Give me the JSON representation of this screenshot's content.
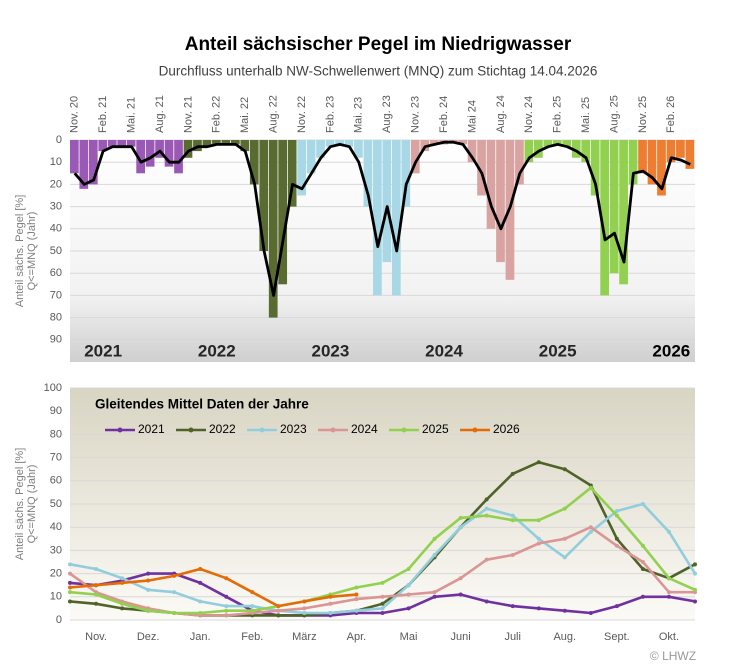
{
  "footer": "© LHWZ",
  "chart_data": [
    {
      "type": "bar",
      "title": "Anteil sächsischer Pegel im Niedrigwasser",
      "subtitle": "Durchfluss unterhalb NW-Schwellenwert (MNQ) zum Stichtag 14.04.2026",
      "ylabel": [
        "Anteil sächs. Pegel [%]",
        "Q<=MNQ (Jahr)"
      ],
      "y_inverted": true,
      "ylim": [
        0,
        100
      ],
      "yticks": [
        0,
        10,
        20,
        30,
        40,
        50,
        60,
        70,
        80,
        90
      ],
      "grid": true,
      "categories": [
        "Nov. 20",
        null,
        null,
        "Feb. 21",
        null,
        null,
        "Mai. 21",
        null,
        null,
        "Aug. 21",
        null,
        null,
        "Nov. 21",
        null,
        null,
        "Feb. 22",
        null,
        null,
        "Mai. 22",
        null,
        null,
        "Aug. 22",
        null,
        null,
        "Nov. 22",
        null,
        null,
        "Feb. 23",
        null,
        null,
        "Mai. 23",
        null,
        null,
        "Aug. 23",
        null,
        null,
        "Nov. 23",
        null,
        null,
        "Feb. 24",
        null,
        null,
        "Mai 24",
        null,
        null,
        "Aug. 24",
        null,
        null,
        "Nov. 24",
        null,
        null,
        "Feb. 25",
        null,
        null,
        "Mai. 25",
        null,
        null,
        "Aug. 25",
        null,
        null,
        "Nov. 25",
        null,
        null,
        "Feb. 26",
        null,
        null
      ],
      "series": [
        {
          "name": "2021",
          "color": "#9b59b6",
          "values": [
            15,
            22,
            20,
            5,
            3,
            3,
            3,
            15,
            12,
            8,
            12,
            15,
            null,
            null,
            null,
            null,
            null,
            null,
            null,
            null,
            null,
            null,
            null,
            null,
            null,
            null,
            null,
            null,
            null,
            null,
            null,
            null,
            null,
            null,
            null,
            null,
            null,
            null,
            null,
            null,
            null,
            null,
            null,
            null,
            null,
            null,
            null,
            null,
            null,
            null,
            null,
            null,
            null,
            null,
            null,
            null,
            null,
            null,
            null,
            null,
            null,
            null,
            null,
            null,
            null,
            null
          ]
        },
        {
          "name": "2022",
          "color": "#5a6b32",
          "values": [
            null,
            null,
            null,
            null,
            null,
            null,
            null,
            null,
            null,
            null,
            null,
            null,
            8,
            5,
            3,
            2,
            2,
            2,
            5,
            20,
            50,
            80,
            65,
            30,
            null,
            null,
            null,
            null,
            null,
            null,
            null,
            null,
            null,
            null,
            null,
            null,
            null,
            null,
            null,
            null,
            null,
            null,
            null,
            null,
            null,
            null,
            null,
            null,
            null,
            null,
            null,
            null,
            null,
            null,
            null,
            null,
            null,
            null,
            null,
            null,
            null,
            null,
            null,
            null,
            null,
            null
          ]
        },
        {
          "name": "2023",
          "color": "#a8d8e6",
          "values": [
            null,
            null,
            null,
            null,
            null,
            null,
            null,
            null,
            null,
            null,
            null,
            null,
            null,
            null,
            null,
            null,
            null,
            null,
            null,
            null,
            null,
            null,
            null,
            null,
            25,
            15,
            8,
            3,
            2,
            3,
            8,
            30,
            70,
            55,
            70,
            30,
            null,
            null,
            null,
            null,
            null,
            null,
            null,
            null,
            null,
            null,
            null,
            null,
            null,
            null,
            null,
            null,
            null,
            null,
            null,
            null,
            null,
            null,
            null,
            null,
            null,
            null,
            null,
            null,
            null,
            null
          ]
        },
        {
          "name": "2024",
          "color": "#d9a3a1",
          "values": [
            null,
            null,
            null,
            null,
            null,
            null,
            null,
            null,
            null,
            null,
            null,
            null,
            null,
            null,
            null,
            null,
            null,
            null,
            null,
            null,
            null,
            null,
            null,
            null,
            null,
            null,
            null,
            null,
            null,
            null,
            null,
            null,
            null,
            null,
            null,
            null,
            15,
            5,
            2,
            2,
            1,
            2,
            10,
            25,
            40,
            55,
            63,
            20,
            null,
            null,
            null,
            null,
            null,
            null,
            null,
            null,
            null,
            null,
            null,
            null,
            null,
            null,
            null,
            null,
            null,
            null
          ]
        },
        {
          "name": "2025",
          "color": "#92d050",
          "values": [
            null,
            null,
            null,
            null,
            null,
            null,
            null,
            null,
            null,
            null,
            null,
            null,
            null,
            null,
            null,
            null,
            null,
            null,
            null,
            null,
            null,
            null,
            null,
            null,
            null,
            null,
            null,
            null,
            null,
            null,
            null,
            null,
            null,
            null,
            null,
            null,
            null,
            null,
            null,
            null,
            null,
            null,
            null,
            null,
            null,
            null,
            null,
            null,
            10,
            8,
            3,
            2,
            3,
            8,
            10,
            25,
            70,
            60,
            65,
            20,
            null,
            null,
            null,
            null,
            null,
            null
          ]
        },
        {
          "name": "2026",
          "color": "#ed7d31",
          "values": [
            null,
            null,
            null,
            null,
            null,
            null,
            null,
            null,
            null,
            null,
            null,
            null,
            null,
            null,
            null,
            null,
            null,
            null,
            null,
            null,
            null,
            null,
            null,
            null,
            null,
            null,
            null,
            null,
            null,
            null,
            null,
            null,
            null,
            null,
            null,
            null,
            null,
            null,
            null,
            null,
            null,
            null,
            null,
            null,
            null,
            null,
            null,
            null,
            null,
            null,
            null,
            null,
            null,
            null,
            null,
            null,
            null,
            null,
            null,
            null,
            15,
            20,
            25,
            10,
            8,
            13
          ]
        },
        {
          "type": "line",
          "color": "#000000",
          "values": [
            15,
            20,
            18,
            5,
            3,
            3,
            3,
            10,
            8,
            5,
            10,
            10,
            5,
            3,
            3,
            2,
            2,
            2,
            5,
            20,
            50,
            70,
            45,
            20,
            22,
            15,
            8,
            3,
            2,
            3,
            10,
            25,
            48,
            30,
            50,
            20,
            10,
            3,
            2,
            1,
            1,
            2,
            8,
            15,
            30,
            40,
            30,
            15,
            8,
            5,
            3,
            2,
            3,
            5,
            8,
            20,
            45,
            42,
            55,
            15,
            14,
            17,
            22,
            8,
            9,
            11
          ]
        }
      ]
    },
    {
      "type": "line",
      "title": "Gleitendes Mittel Daten der Jahre",
      "ylabel": [
        "Anteil sächs. Pegel [%]",
        "Q<=MNQ (Jahr)"
      ],
      "legend": "top-left",
      "grid": true,
      "ylim": [
        0,
        100
      ],
      "yticks": [
        0,
        10,
        20,
        30,
        40,
        50,
        60,
        70,
        80,
        90,
        100
      ],
      "xlim": [
        0,
        12
      ],
      "xticks": [
        {
          "value": 0.5,
          "label": "Nov."
        },
        {
          "value": 1.5,
          "label": "Dez."
        },
        {
          "value": 2.5,
          "label": "Jan."
        },
        {
          "value": 3.5,
          "label": "Feb."
        },
        {
          "value": 4.5,
          "label": "März"
        },
        {
          "value": 5.5,
          "label": "Apr."
        },
        {
          "value": 6.5,
          "label": "Mai"
        },
        {
          "value": 7.5,
          "label": "Juni"
        },
        {
          "value": 8.5,
          "label": "Juli"
        },
        {
          "value": 9.5,
          "label": "Aug."
        },
        {
          "value": 10.5,
          "label": "Sept."
        },
        {
          "value": 11.5,
          "label": "Okt."
        }
      ],
      "x": [
        0,
        0.5,
        1,
        1.5,
        2,
        2.5,
        3,
        3.5,
        4,
        4.5,
        5,
        5.5,
        6,
        6.5,
        7,
        7.5,
        8,
        8.5,
        9,
        9.5,
        10,
        10.5,
        11,
        11.5,
        12
      ],
      "series": [
        {
          "name": "2021",
          "color": "#7030a0",
          "values": [
            16,
            15,
            17,
            20,
            20,
            16,
            10,
            4,
            2,
            2,
            2,
            3,
            3,
            5,
            10,
            11,
            8,
            6,
            5,
            4,
            3,
            6,
            10,
            10,
            8
          ]
        },
        {
          "name": "2022",
          "color": "#4f6228",
          "values": [
            8,
            7,
            5,
            4,
            3,
            2,
            2,
            2,
            2,
            2,
            3,
            4,
            7,
            15,
            27,
            40,
            52,
            63,
            68,
            65,
            58,
            35,
            22,
            18,
            24
          ]
        },
        {
          "name": "2023",
          "color": "#92cddc",
          "values": [
            24,
            22,
            18,
            13,
            12,
            8,
            6,
            6,
            4,
            3,
            3,
            4,
            5,
            15,
            28,
            40,
            48,
            45,
            35,
            27,
            38,
            47,
            50,
            38,
            20
          ]
        },
        {
          "name": "2024",
          "color": "#d99694",
          "values": [
            20,
            12,
            8,
            5,
            3,
            2,
            2,
            3,
            4,
            5,
            7,
            9,
            10,
            11,
            12,
            18,
            26,
            28,
            33,
            35,
            40,
            32,
            25,
            12,
            12
          ]
        },
        {
          "name": "2025",
          "color": "#92d050",
          "values": [
            12,
            11,
            7,
            4,
            3,
            3,
            4,
            4,
            6,
            8,
            11,
            14,
            16,
            22,
            35,
            44,
            45,
            43,
            43,
            48,
            57,
            45,
            32,
            18,
            13
          ]
        },
        {
          "name": "2026",
          "color": "#e36c09",
          "values": [
            14,
            15,
            16,
            17,
            19,
            22,
            18,
            12,
            6,
            8,
            10,
            11,
            null,
            null,
            null,
            null,
            null,
            null,
            null,
            null,
            null,
            null,
            null,
            null,
            null
          ]
        }
      ]
    }
  ]
}
